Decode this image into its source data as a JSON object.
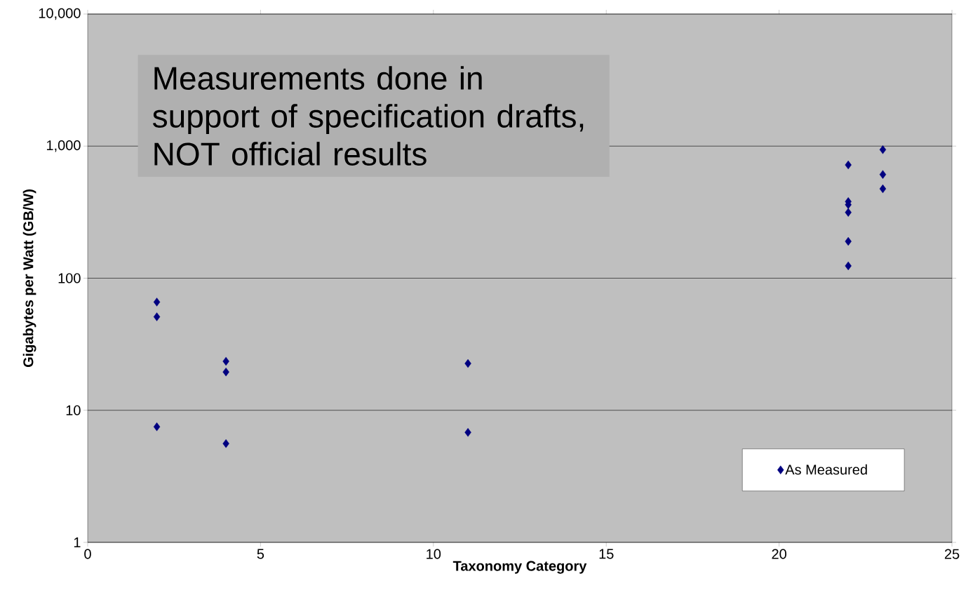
{
  "chart_data": {
    "type": "scatter",
    "xlabel": "Taxonomy Category",
    "ylabel": "Gigabytes per Watt (GB/W)",
    "annotations": [
      "Measurements done in support of specification drafts, NOT official results"
    ],
    "x": [
      2,
      2,
      2,
      4,
      4,
      4,
      11,
      11,
      22,
      22,
      22,
      22,
      22,
      22,
      23,
      23,
      23
    ],
    "series": [
      {
        "name": "As Measured",
        "color": "#000080",
        "values": [
          66,
          51,
          7.5,
          23.5,
          19.5,
          5.6,
          22.6,
          6.8,
          720,
          380,
          360,
          315,
          190,
          124,
          940,
          610,
          475
        ]
      }
    ],
    "xlim": [
      0,
      25
    ],
    "xticks": [
      0,
      5,
      10,
      15,
      20,
      25
    ],
    "ylim": [
      1,
      10000
    ],
    "yticks": [
      1,
      10,
      100,
      {
        "value": 1000,
        "label": "1,000"
      },
      {
        "value": 10000,
        "label": "10,000"
      }
    ],
    "log": "y",
    "grid": "y",
    "legend": "bottom right",
    "marker": "diamond"
  }
}
